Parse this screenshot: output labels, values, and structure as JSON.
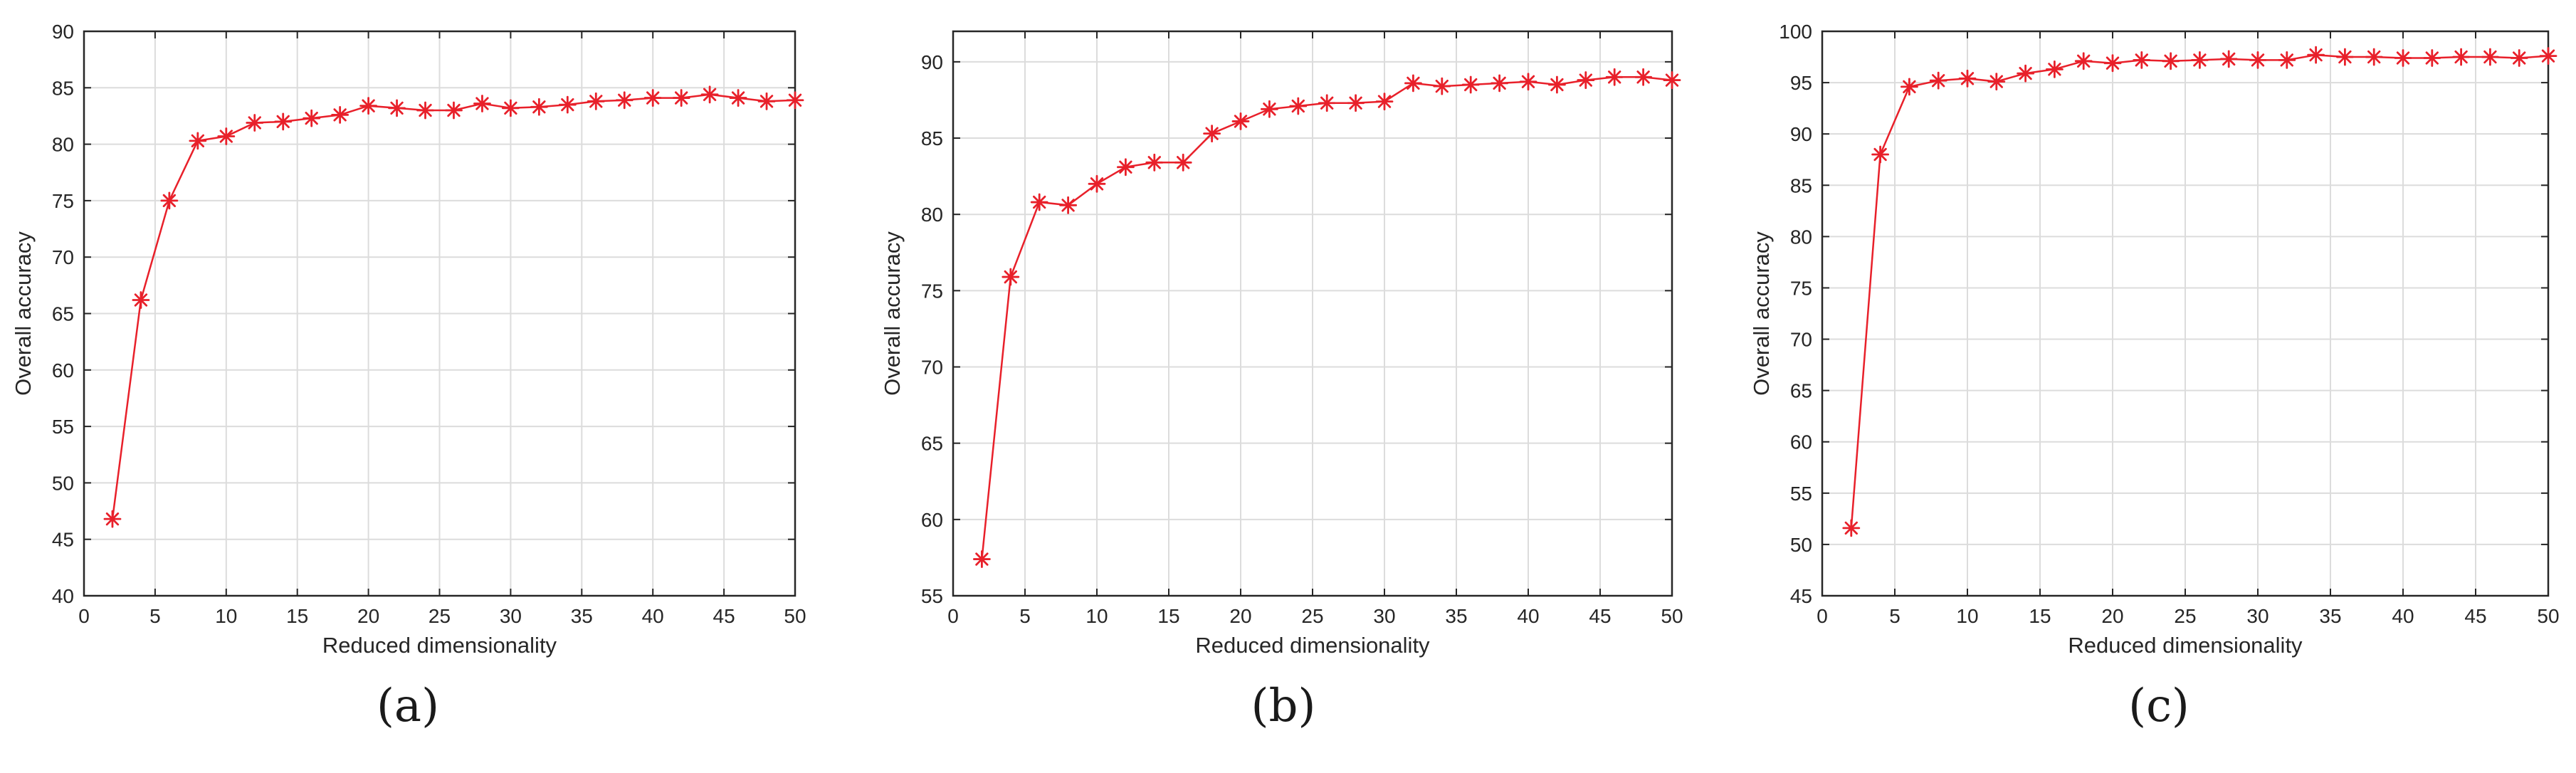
{
  "chart_data": [
    {
      "type": "line",
      "caption": "(a)",
      "xlabel": "Reduced dimensionality",
      "ylabel": "Overall accuracy",
      "xlim": [
        0,
        50
      ],
      "ylim": [
        40,
        90
      ],
      "xticks": [
        0,
        5,
        10,
        15,
        20,
        25,
        30,
        35,
        40,
        45,
        50
      ],
      "yticks": [
        40,
        45,
        50,
        55,
        60,
        65,
        70,
        75,
        80,
        85,
        90
      ],
      "grid": true,
      "color": "#e8202a",
      "marker": "asterisk",
      "series": [
        {
          "x": [
            2,
            4,
            6,
            8,
            10,
            12,
            14,
            16,
            18,
            20,
            22,
            24,
            26,
            28,
            30,
            32,
            34,
            36,
            38,
            40,
            42,
            44,
            46,
            48,
            50
          ],
          "values": [
            46.8,
            66.2,
            75.0,
            80.3,
            80.7,
            81.9,
            82.0,
            82.3,
            82.6,
            83.4,
            83.2,
            83.0,
            83.0,
            83.6,
            83.2,
            83.3,
            83.5,
            83.8,
            83.9,
            84.1,
            84.1,
            84.4,
            84.1,
            83.8,
            83.9
          ]
        }
      ]
    },
    {
      "type": "line",
      "caption": "(b)",
      "xlabel": "Reduced dimensionality",
      "ylabel": "Overall accuracy",
      "xlim": [
        0,
        50
      ],
      "ylim": [
        55,
        92
      ],
      "xticks": [
        0,
        5,
        10,
        15,
        20,
        25,
        30,
        35,
        40,
        45,
        50
      ],
      "yticks": [
        55,
        60,
        65,
        70,
        75,
        80,
        85,
        90
      ],
      "grid": true,
      "color": "#e8202a",
      "marker": "asterisk",
      "series": [
        {
          "x": [
            2,
            4,
            6,
            8,
            10,
            12,
            14,
            16,
            18,
            20,
            22,
            24,
            26,
            28,
            30,
            32,
            34,
            36,
            38,
            40,
            42,
            44,
            46,
            48,
            50
          ],
          "values": [
            57.4,
            75.9,
            80.8,
            80.6,
            82.0,
            83.1,
            83.4,
            83.4,
            85.3,
            86.1,
            86.9,
            87.1,
            87.3,
            87.3,
            87.4,
            88.6,
            88.4,
            88.5,
            88.6,
            88.7,
            88.5,
            88.8,
            89.0,
            89.0,
            88.8
          ]
        }
      ]
    },
    {
      "type": "line",
      "caption": "(c)",
      "xlabel": "Reduced dimensionality",
      "ylabel": "Overall accuracy",
      "xlim": [
        0,
        50
      ],
      "ylim": [
        45,
        100
      ],
      "xticks": [
        0,
        5,
        10,
        15,
        20,
        25,
        30,
        35,
        40,
        45,
        50
      ],
      "yticks": [
        45,
        50,
        55,
        60,
        65,
        70,
        75,
        80,
        85,
        90,
        95,
        100
      ],
      "grid": true,
      "color": "#e8202a",
      "marker": "asterisk",
      "series": [
        {
          "x": [
            2,
            4,
            6,
            8,
            10,
            12,
            14,
            16,
            18,
            20,
            22,
            24,
            26,
            28,
            30,
            32,
            34,
            36,
            38,
            40,
            42,
            44,
            46,
            48,
            50
          ],
          "values": [
            51.6,
            88.0,
            94.6,
            95.2,
            95.4,
            95.1,
            95.9,
            96.3,
            97.1,
            96.9,
            97.2,
            97.1,
            97.2,
            97.3,
            97.2,
            97.2,
            97.7,
            97.5,
            97.5,
            97.4,
            97.4,
            97.5,
            97.5,
            97.4,
            97.6
          ]
        }
      ]
    }
  ]
}
